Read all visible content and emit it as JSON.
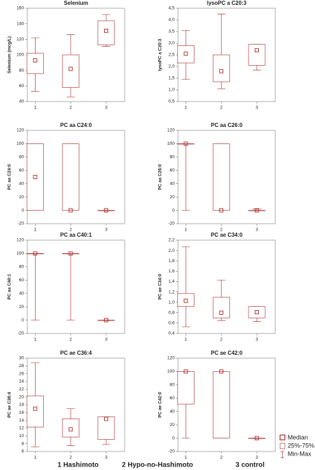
{
  "chart_data": [
    {
      "type": "box",
      "title": "Selenium",
      "y_label": "Selenium  (mcg/L)",
      "categories": [
        "1",
        "2",
        "3"
      ],
      "color": "#b03a3a",
      "min": [
        53,
        46,
        111
      ],
      "q1": [
        76,
        58,
        113
      ],
      "median": [
        93,
        82,
        131
      ],
      "q3": [
        102,
        100,
        144
      ],
      "max": [
        122,
        126,
        152
      ],
      "ylim": [
        40,
        160
      ],
      "yticks": [
        40,
        60,
        80,
        100,
        120,
        140,
        160
      ]
    },
    {
      "type": "box",
      "title": "lysoPC a C20:3",
      "y_label": "lysoPC a C20:3",
      "categories": [
        "1",
        "2",
        "3"
      ],
      "color": "#b03a3a",
      "min": [
        1.45,
        1.05,
        1.85
      ],
      "q1": [
        2.15,
        1.35,
        2.05
      ],
      "median": [
        2.55,
        1.8,
        2.7
      ],
      "q3": [
        2.9,
        2.5,
        2.95
      ],
      "max": [
        3.55,
        4.25,
        2.95
      ],
      "ylim": [
        0.5,
        4.5
      ],
      "yticks": [
        {
          "value": 0.5,
          "label": "0,5"
        },
        {
          "value": 1,
          "label": "1,0"
        },
        {
          "value": 1.5,
          "label": "1,5"
        },
        {
          "value": 2,
          "label": "2,0"
        },
        {
          "value": 2.5,
          "label": "2,5"
        },
        {
          "value": 3,
          "label": "3,0"
        },
        {
          "value": 3.5,
          "label": "3,5"
        },
        {
          "value": 4,
          "label": "4,0"
        },
        {
          "value": 4.5,
          "label": "4,5"
        }
      ]
    },
    {
      "type": "box",
      "title": "PC aa C24:0",
      "y_label": "PC aa C24:0",
      "categories": [
        "1",
        "2",
        "3"
      ],
      "color": "#b03a3a",
      "min": [
        0,
        0,
        0
      ],
      "q1": [
        0,
        0,
        0
      ],
      "median": [
        50,
        0,
        0
      ],
      "q3": [
        100,
        100,
        0
      ],
      "max": [
        100,
        100,
        0
      ],
      "ylim": [
        -20,
        120
      ],
      "yticks": [
        -20,
        0,
        20,
        40,
        60,
        80,
        100,
        120
      ]
    },
    {
      "type": "box",
      "title": "PC aa C26:0",
      "y_label": "PC aa C26:0",
      "categories": [
        "1",
        "2",
        "3"
      ],
      "color": "#b03a3a",
      "min": [
        0,
        0,
        0
      ],
      "q1": [
        100,
        0,
        0
      ],
      "median": [
        100,
        0,
        0
      ],
      "q3": [
        100,
        100,
        0
      ],
      "max": [
        100,
        100,
        2
      ],
      "ylim": [
        -20,
        120
      ],
      "yticks": [
        -20,
        0,
        20,
        40,
        60,
        80,
        100,
        120
      ]
    },
    {
      "type": "box",
      "title": "PC aa C40:1",
      "y_label": "PC aa C40:1",
      "categories": [
        "1",
        "2",
        "3"
      ],
      "color": "#b03a3a",
      "min": [
        0,
        0,
        0
      ],
      "q1": [
        100,
        100,
        0
      ],
      "median": [
        100,
        100,
        0
      ],
      "q3": [
        100,
        100,
        0
      ],
      "max": [
        100,
        100,
        0
      ],
      "ylim": [
        -20,
        120
      ],
      "yticks": [
        -20,
        0,
        20,
        40,
        60,
        80,
        100,
        120
      ]
    },
    {
      "type": "box",
      "title": "PC ae C34:0",
      "y_label": "PC ae C34:0",
      "categories": [
        "1",
        "2",
        "3"
      ],
      "color": "#b03a3a",
      "min": [
        0.53,
        0.65,
        0.63
      ],
      "q1": [
        0.92,
        0.7,
        0.7
      ],
      "median": [
        1.03,
        0.8,
        0.81
      ],
      "q3": [
        1.17,
        1.1,
        0.92
      ],
      "max": [
        2.07,
        1.43,
        0.92
      ],
      "ylim": [
        0.4,
        2.2
      ],
      "yticks": [
        {
          "value": 0.4,
          "label": "0,4"
        },
        {
          "value": 0.6,
          "label": "0,6"
        },
        {
          "value": 0.8,
          "label": "0,8"
        },
        {
          "value": 1,
          "label": "1,0"
        },
        {
          "value": 1.2,
          "label": "1,2"
        },
        {
          "value": 1.4,
          "label": "1,4"
        },
        {
          "value": 1.6,
          "label": "1,6"
        },
        {
          "value": 1.8,
          "label": "1,8"
        },
        {
          "value": 2,
          "label": "2,0"
        },
        {
          "value": 2.2,
          "label": "2,2"
        }
      ]
    },
    {
      "type": "box",
      "title": "PC ae C36:4",
      "y_label": "PC ae C36:4",
      "categories": [
        "1",
        "2",
        "3"
      ],
      "color": "#b03a3a",
      "min": [
        7.2,
        7.5,
        7.8
      ],
      "q1": [
        12.3,
        9.7,
        9.1
      ],
      "median": [
        17,
        11.7,
        14.4
      ],
      "q3": [
        20.3,
        14.4,
        14.9
      ],
      "max": [
        28.8,
        17,
        14.9
      ],
      "ylim": [
        6,
        30
      ],
      "yticks": [
        6,
        8,
        10,
        12,
        14,
        16,
        18,
        20,
        22,
        24,
        26,
        28,
        30
      ]
    },
    {
      "type": "box",
      "title": "PC ae C42:0",
      "y_label": "PC ae C42:0",
      "categories": [
        "1",
        "2",
        "3"
      ],
      "color": "#b03a3a",
      "min": [
        0,
        0,
        0
      ],
      "q1": [
        51,
        0,
        0
      ],
      "median": [
        100,
        100,
        0
      ],
      "q3": [
        100,
        100,
        0
      ],
      "max": [
        100,
        100,
        0
      ],
      "ylim": [
        -20,
        120
      ],
      "yticks": [
        -20,
        0,
        20,
        40,
        60,
        80,
        100,
        120
      ]
    }
  ],
  "legend": [
    "Median",
    "25%-75%",
    "Min-Max"
  ],
  "groups": [
    "1 Hashimoto",
    "2  Hypo-no-Hashimoto",
    "3 control"
  ]
}
